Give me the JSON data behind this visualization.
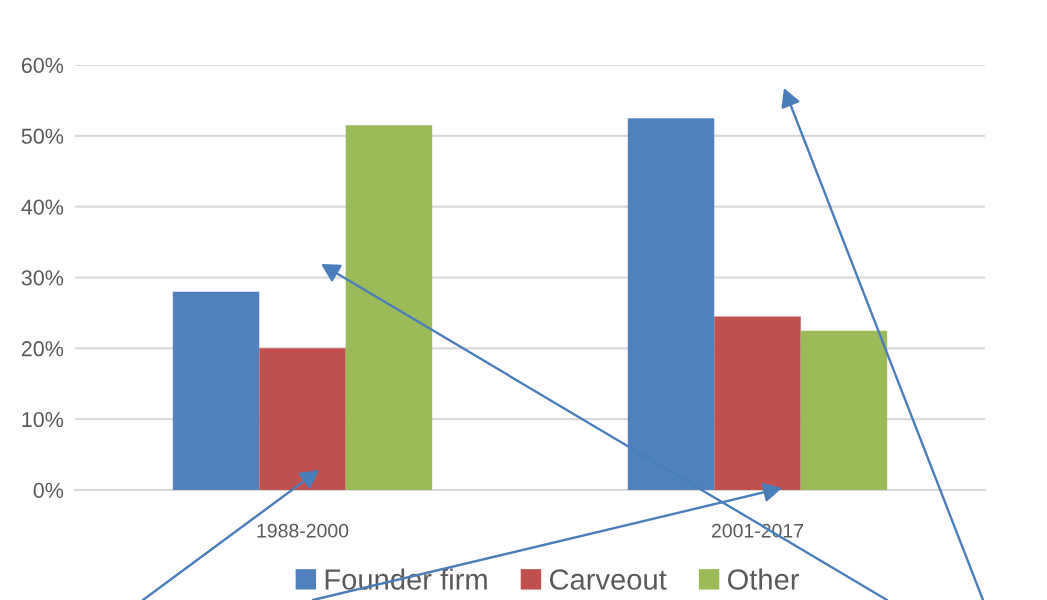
{
  "chart_data": {
    "type": "bar",
    "categories": [
      "1988-2000",
      "2001-2017"
    ],
    "series": [
      {
        "name": "Founder firm",
        "color": "#4f81bd",
        "values": [
          28,
          52.5
        ]
      },
      {
        "name": "Carveout",
        "color": "#c0504d",
        "values": [
          20,
          24.5
        ]
      },
      {
        "name": "Other",
        "color": "#9bbb59",
        "values": [
          51.5,
          22.5
        ]
      }
    ],
    "ylim": [
      0,
      60
    ],
    "yticks": [
      {
        "value": 0,
        "label": "0%"
      },
      {
        "value": 10,
        "label": "10%"
      },
      {
        "value": 20,
        "label": "20%"
      },
      {
        "value": 30,
        "label": "30%"
      },
      {
        "value": 40,
        "label": "40%"
      },
      {
        "value": 50,
        "label": "50%"
      },
      {
        "value": 60,
        "label": "60%"
      }
    ],
    "grid": "y",
    "legend": "bottom"
  }
}
